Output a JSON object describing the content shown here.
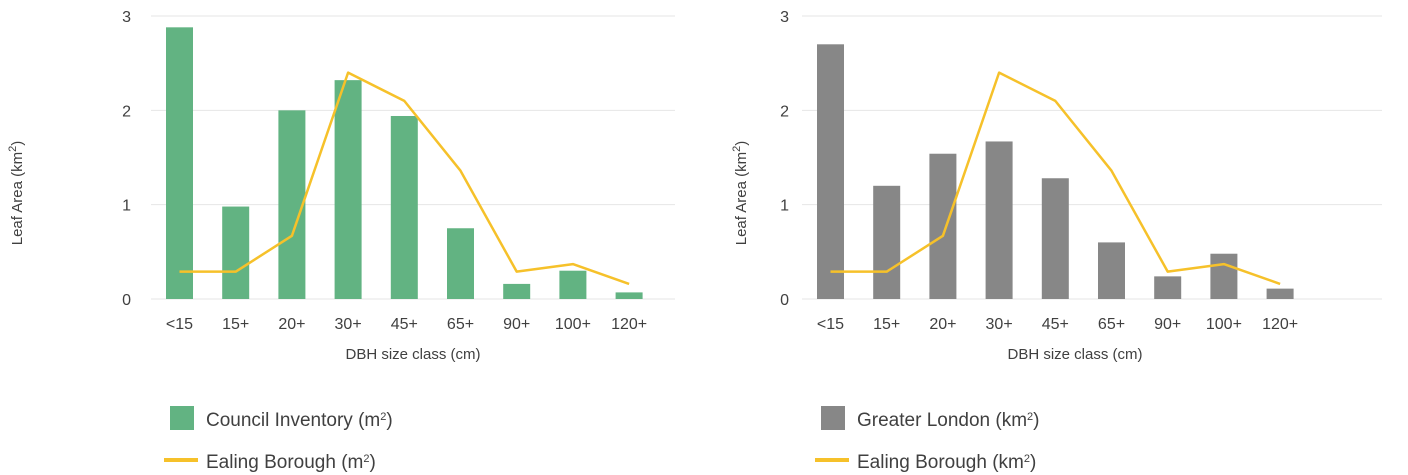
{
  "chart_data": [
    {
      "type": "bar",
      "categories": [
        "<15",
        "15+",
        "20+",
        "30+",
        "45+",
        "65+",
        "90+",
        "100+",
        "120+"
      ],
      "series": [
        {
          "name": "Council Inventory (m2)",
          "kind": "bar",
          "color": "#62b382",
          "values": [
            2.88,
            0.98,
            2.0,
            2.32,
            1.94,
            0.75,
            0.16,
            0.3,
            0.07
          ]
        },
        {
          "name": "Ealing Borough (m2)",
          "kind": "line",
          "color": "#f6c12a",
          "values": [
            0.29,
            0.29,
            0.67,
            2.4,
            2.1,
            1.36,
            0.29,
            0.37,
            0.16
          ]
        }
      ],
      "xlabel": "DBH size class (cm)",
      "ylabel": "Leaf Area (km2)",
      "ylim": [
        0,
        3
      ],
      "yticks": [
        "0",
        "1",
        "2",
        "3"
      ],
      "grid": true,
      "legend": {
        "position": "bottom",
        "items": [
          {
            "text": "Council Inventory (m",
            "sup": "2",
            "tail": ")"
          },
          {
            "text": "Ealing Borough (m",
            "sup": "2",
            "tail": ")"
          }
        ]
      },
      "ylabel_parts": {
        "text": "Leaf Area (km",
        "sup": "2",
        "tail": ")"
      }
    },
    {
      "type": "bar",
      "categories": [
        "<15",
        "15+",
        "20+",
        "30+",
        "45+",
        "65+",
        "90+",
        "100+",
        "120+"
      ],
      "series": [
        {
          "name": "Greater London (km2)",
          "kind": "bar",
          "color": "#878787",
          "values": [
            2.7,
            1.2,
            1.54,
            1.67,
            1.28,
            0.6,
            0.24,
            0.48,
            0.11
          ]
        },
        {
          "name": "Ealing Borough (km2)",
          "kind": "line",
          "color": "#f6c12a",
          "values": [
            0.29,
            0.29,
            0.67,
            2.4,
            2.1,
            1.36,
            0.29,
            0.37,
            0.16
          ]
        }
      ],
      "xlabel": "DBH size class (cm)",
      "ylabel": "Leaf Area (km2)",
      "ylim": [
        0,
        3
      ],
      "yticks": [
        "0",
        "1",
        "2",
        "3"
      ],
      "grid": true,
      "legend": {
        "position": "bottom",
        "items": [
          {
            "text": "Greater London (km",
            "sup": "2",
            "tail": ")"
          },
          {
            "text": "Ealing Borough (km",
            "sup": "2",
            "tail": ")"
          }
        ]
      },
      "ylabel_parts": {
        "text": "Leaf Area (km",
        "sup": "2",
        "tail": ")"
      }
    }
  ]
}
